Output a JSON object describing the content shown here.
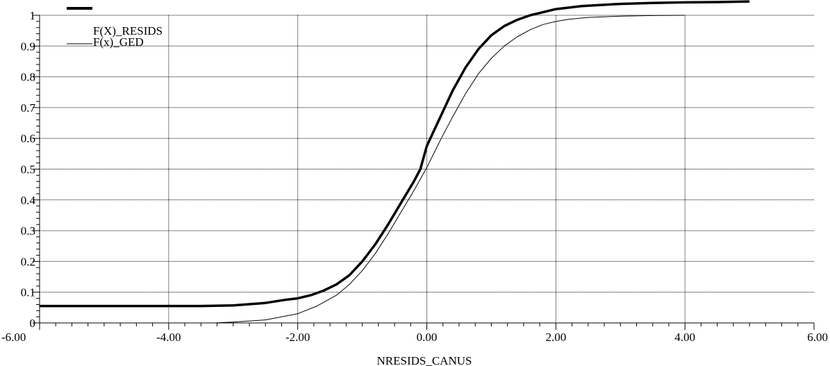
{
  "chart_data": {
    "type": "line",
    "title": "",
    "xlabel": "NRESIDS_CANUS",
    "ylabel": "",
    "xlim": [
      -6,
      6
    ],
    "ylim": [
      0,
      1
    ],
    "x_ticks": [
      -6,
      -4,
      -2,
      0,
      2,
      4,
      6
    ],
    "x_tick_labels": [
      "-6.00",
      "-4.00",
      "-2.00",
      "0.00",
      "2.00",
      "4.00",
      "6.00"
    ],
    "y_ticks": [
      0,
      0.1,
      0.2,
      0.3,
      0.4,
      0.5,
      0.6,
      0.7,
      0.8,
      0.9,
      1
    ],
    "y_tick_labels": [
      "0",
      "0.1",
      "0.2",
      "0.3",
      "0.4",
      "0.5",
      "0.6",
      "0.7",
      "0.8",
      "0.9",
      "1"
    ],
    "grid": true,
    "legend_position": "top-left",
    "series": [
      {
        "name": "F(X)_RESIDS",
        "style": "thick",
        "color": "#000000",
        "x": [
          -6,
          -5,
          -4,
          -3.5,
          -3,
          -2.5,
          -2.2,
          -2,
          -1.8,
          -1.6,
          -1.4,
          -1.2,
          -1,
          -0.8,
          -0.6,
          -0.4,
          -0.2,
          -0.1,
          0,
          0.1,
          0.2,
          0.4,
          0.6,
          0.8,
          1,
          1.2,
          1.4,
          1.6,
          1.8,
          2,
          2.4,
          3,
          3.5,
          4,
          4.5,
          5
        ],
        "y": [
          0.055,
          0.055,
          0.055,
          0.055,
          0.057,
          0.065,
          0.075,
          0.08,
          0.09,
          0.105,
          0.125,
          0.155,
          0.2,
          0.255,
          0.32,
          0.39,
          0.46,
          0.5,
          0.575,
          0.62,
          0.665,
          0.755,
          0.83,
          0.89,
          0.935,
          0.965,
          0.985,
          1.0,
          1.01,
          1.02,
          1.03,
          1.037,
          1.04,
          1.042,
          1.043,
          1.045
        ]
      },
      {
        "name": "F(x)_GED",
        "style": "thin",
        "color": "#000000",
        "x": [
          -3.3,
          -3,
          -2.5,
          -2,
          -1.7,
          -1.4,
          -1.2,
          -1,
          -0.8,
          -0.6,
          -0.4,
          -0.2,
          0,
          0.2,
          0.4,
          0.6,
          0.8,
          1,
          1.2,
          1.4,
          1.6,
          1.8,
          2,
          2.2,
          2.5,
          3,
          3.5,
          4
        ],
        "y": [
          0,
          0.003,
          0.01,
          0.03,
          0.055,
          0.09,
          0.125,
          0.17,
          0.225,
          0.29,
          0.36,
          0.43,
          0.505,
          0.59,
          0.67,
          0.745,
          0.81,
          0.86,
          0.9,
          0.93,
          0.953,
          0.97,
          0.98,
          0.987,
          0.993,
          0.997,
          0.999,
          1.0
        ]
      }
    ]
  }
}
